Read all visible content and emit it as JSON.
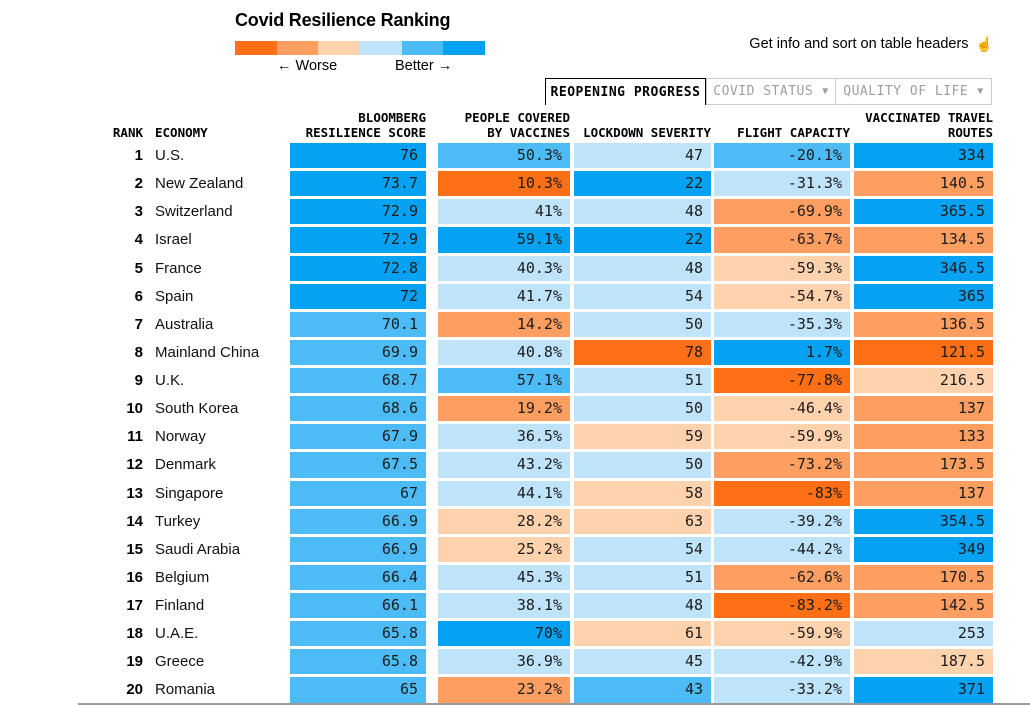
{
  "palette": {
    "o3": "#ff6f15",
    "o2": "#ff9e61",
    "o1": "#ffd2ae",
    "b1": "#bfe3f9",
    "b2": "#4dbbf5",
    "b3": "#05a2f3"
  },
  "header": {
    "title": "Covid Resilience Ranking",
    "legend": {
      "worse_label": "← Worse",
      "better_label": "Better →",
      "colors": [
        "#ff6f15",
        "#ff9e61",
        "#ffd2ae",
        "#bfe3f9",
        "#4dbbf5",
        "#05a2f3"
      ]
    },
    "info_hint": "Get info and sort on table headers",
    "info_icon": "☝"
  },
  "tabs": [
    {
      "label": "REOPENING PROGRESS",
      "active": true
    },
    {
      "label": "COVID STATUS",
      "active": false,
      "dropdown_icon": "▼"
    },
    {
      "label": "QUALITY OF LIFE",
      "active": false,
      "dropdown_icon": "▼"
    }
  ],
  "table": {
    "headers": [
      {
        "id": "rank",
        "label": "RANK"
      },
      {
        "id": "economy",
        "label": "ECONOMY"
      },
      {
        "id": "resilience-score",
        "label": "BLOOMBERG\nRESILIENCE SCORE"
      },
      {
        "id": "people-covered-by-vaccines",
        "label": "PEOPLE COVERED\nBY VACCINES"
      },
      {
        "id": "lockdown-severity",
        "label": "LOCKDOWN SEVERITY"
      },
      {
        "id": "flight-capacity",
        "label": "FLIGHT CAPACITY"
      },
      {
        "id": "vaccinated-travel-routes",
        "label": "VACCINATED TRAVEL\nROUTES"
      }
    ]
  },
  "chart_data": {
    "type": "heatmap",
    "title": "Covid Resilience Ranking",
    "columns": [
      "Rank",
      "Economy",
      "Bloomberg Resilience Score",
      "People Covered by Vaccines",
      "Lockdown Severity",
      "Flight Capacity",
      "Vaccinated Travel Routes"
    ],
    "color_scale": "orange (worse) to blue (better), 6 levels: o3,o2,o1,b1,b2,b3",
    "rows": [
      {
        "rank": "1",
        "economy": "U.S.",
        "cells": [
          {
            "v": "76",
            "c": "b3"
          },
          {
            "v": "50.3%",
            "c": "b2"
          },
          {
            "v": "47",
            "c": "b1"
          },
          {
            "v": "-20.1%",
            "c": "b2"
          },
          {
            "v": "334",
            "c": "b3"
          }
        ]
      },
      {
        "rank": "2",
        "economy": "New Zealand",
        "cells": [
          {
            "v": "73.7",
            "c": "b3"
          },
          {
            "v": "10.3%",
            "c": "o3"
          },
          {
            "v": "22",
            "c": "b3"
          },
          {
            "v": "-31.3%",
            "c": "b1"
          },
          {
            "v": "140.5",
            "c": "o2"
          }
        ]
      },
      {
        "rank": "3",
        "economy": "Switzerland",
        "cells": [
          {
            "v": "72.9",
            "c": "b3"
          },
          {
            "v": "41%",
            "c": "b1"
          },
          {
            "v": "48",
            "c": "b1"
          },
          {
            "v": "-69.9%",
            "c": "o2"
          },
          {
            "v": "365.5",
            "c": "b3"
          }
        ]
      },
      {
        "rank": "4",
        "economy": "Israel",
        "cells": [
          {
            "v": "72.9",
            "c": "b3"
          },
          {
            "v": "59.1%",
            "c": "b3"
          },
          {
            "v": "22",
            "c": "b3"
          },
          {
            "v": "-63.7%",
            "c": "o2"
          },
          {
            "v": "134.5",
            "c": "o2"
          }
        ]
      },
      {
        "rank": "5",
        "economy": "France",
        "cells": [
          {
            "v": "72.8",
            "c": "b3"
          },
          {
            "v": "40.3%",
            "c": "b1"
          },
          {
            "v": "48",
            "c": "b1"
          },
          {
            "v": "-59.3%",
            "c": "o1"
          },
          {
            "v": "346.5",
            "c": "b3"
          }
        ]
      },
      {
        "rank": "6",
        "economy": "Spain",
        "cells": [
          {
            "v": "72",
            "c": "b3"
          },
          {
            "v": "41.7%",
            "c": "b1"
          },
          {
            "v": "54",
            "c": "b1"
          },
          {
            "v": "-54.7%",
            "c": "o1"
          },
          {
            "v": "365",
            "c": "b3"
          }
        ]
      },
      {
        "rank": "7",
        "economy": "Australia",
        "cells": [
          {
            "v": "70.1",
            "c": "b2"
          },
          {
            "v": "14.2%",
            "c": "o2"
          },
          {
            "v": "50",
            "c": "b1"
          },
          {
            "v": "-35.3%",
            "c": "b1"
          },
          {
            "v": "136.5",
            "c": "o2"
          }
        ]
      },
      {
        "rank": "8",
        "economy": "Mainland China",
        "cells": [
          {
            "v": "69.9",
            "c": "b2"
          },
          {
            "v": "40.8%",
            "c": "b1"
          },
          {
            "v": "78",
            "c": "o3"
          },
          {
            "v": "1.7%",
            "c": "b3"
          },
          {
            "v": "121.5",
            "c": "o3"
          }
        ]
      },
      {
        "rank": "9",
        "economy": "U.K.",
        "cells": [
          {
            "v": "68.7",
            "c": "b2"
          },
          {
            "v": "57.1%",
            "c": "b2"
          },
          {
            "v": "51",
            "c": "b1"
          },
          {
            "v": "-77.8%",
            "c": "o3"
          },
          {
            "v": "216.5",
            "c": "o1"
          }
        ]
      },
      {
        "rank": "10",
        "economy": "South Korea",
        "cells": [
          {
            "v": "68.6",
            "c": "b2"
          },
          {
            "v": "19.2%",
            "c": "o2"
          },
          {
            "v": "50",
            "c": "b1"
          },
          {
            "v": "-46.4%",
            "c": "o1"
          },
          {
            "v": "137",
            "c": "o2"
          }
        ]
      },
      {
        "rank": "11",
        "economy": "Norway",
        "cells": [
          {
            "v": "67.9",
            "c": "b2"
          },
          {
            "v": "36.5%",
            "c": "b1"
          },
          {
            "v": "59",
            "c": "o1"
          },
          {
            "v": "-59.9%",
            "c": "o1"
          },
          {
            "v": "133",
            "c": "o2"
          }
        ]
      },
      {
        "rank": "12",
        "economy": "Denmark",
        "cells": [
          {
            "v": "67.5",
            "c": "b2"
          },
          {
            "v": "43.2%",
            "c": "b1"
          },
          {
            "v": "50",
            "c": "b1"
          },
          {
            "v": "-73.2%",
            "c": "o2"
          },
          {
            "v": "173.5",
            "c": "o2"
          }
        ]
      },
      {
        "rank": "13",
        "economy": "Singapore",
        "cells": [
          {
            "v": "67",
            "c": "b2"
          },
          {
            "v": "44.1%",
            "c": "b1"
          },
          {
            "v": "58",
            "c": "o1"
          },
          {
            "v": "-83%",
            "c": "o3"
          },
          {
            "v": "137",
            "c": "o2"
          }
        ]
      },
      {
        "rank": "14",
        "economy": "Turkey",
        "cells": [
          {
            "v": "66.9",
            "c": "b2"
          },
          {
            "v": "28.2%",
            "c": "o1"
          },
          {
            "v": "63",
            "c": "o1"
          },
          {
            "v": "-39.2%",
            "c": "b1"
          },
          {
            "v": "354.5",
            "c": "b3"
          }
        ]
      },
      {
        "rank": "15",
        "economy": "Saudi Arabia",
        "cells": [
          {
            "v": "66.9",
            "c": "b2"
          },
          {
            "v": "25.2%",
            "c": "o1"
          },
          {
            "v": "54",
            "c": "b1"
          },
          {
            "v": "-44.2%",
            "c": "b1"
          },
          {
            "v": "349",
            "c": "b3"
          }
        ]
      },
      {
        "rank": "16",
        "economy": "Belgium",
        "cells": [
          {
            "v": "66.4",
            "c": "b2"
          },
          {
            "v": "45.3%",
            "c": "b1"
          },
          {
            "v": "51",
            "c": "b1"
          },
          {
            "v": "-62.6%",
            "c": "o2"
          },
          {
            "v": "170.5",
            "c": "o2"
          }
        ]
      },
      {
        "rank": "17",
        "economy": "Finland",
        "cells": [
          {
            "v": "66.1",
            "c": "b2"
          },
          {
            "v": "38.1%",
            "c": "b1"
          },
          {
            "v": "48",
            "c": "b1"
          },
          {
            "v": "-83.2%",
            "c": "o3"
          },
          {
            "v": "142.5",
            "c": "o2"
          }
        ]
      },
      {
        "rank": "18",
        "economy": "U.A.E.",
        "cells": [
          {
            "v": "65.8",
            "c": "b2"
          },
          {
            "v": "70%",
            "c": "b3"
          },
          {
            "v": "61",
            "c": "o1"
          },
          {
            "v": "-59.9%",
            "c": "o1"
          },
          {
            "v": "253",
            "c": "b1"
          }
        ]
      },
      {
        "rank": "19",
        "economy": "Greece",
        "cells": [
          {
            "v": "65.8",
            "c": "b2"
          },
          {
            "v": "36.9%",
            "c": "b1"
          },
          {
            "v": "45",
            "c": "b1"
          },
          {
            "v": "-42.9%",
            "c": "b1"
          },
          {
            "v": "187.5",
            "c": "o1"
          }
        ]
      },
      {
        "rank": "20",
        "economy": "Romania",
        "cells": [
          {
            "v": "65",
            "c": "b2"
          },
          {
            "v": "23.2%",
            "c": "o2"
          },
          {
            "v": "43",
            "c": "b2"
          },
          {
            "v": "-33.2%",
            "c": "b1"
          },
          {
            "v": "371",
            "c": "b3"
          }
        ]
      }
    ]
  }
}
